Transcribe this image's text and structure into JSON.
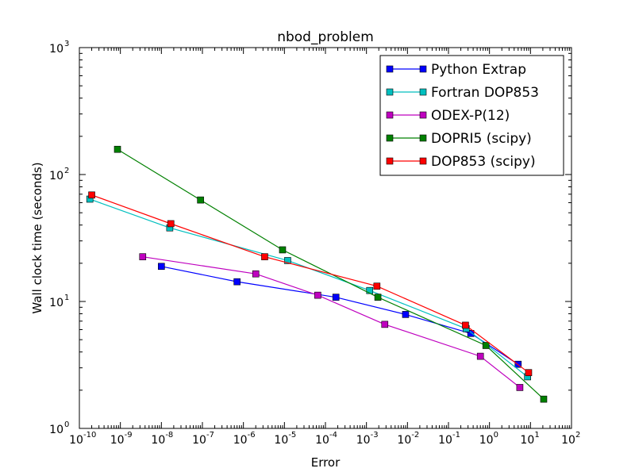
{
  "chart_data": {
    "type": "line",
    "title": "nbod_problem",
    "xlabel": "Error",
    "ylabel": "Wall clock time (seconds)",
    "xscale": "log",
    "yscale": "log",
    "xlim": [
      1e-10,
      100
    ],
    "ylim": [
      1,
      1000
    ],
    "xticks": [
      {
        "base": "10",
        "exp": "-10",
        "value": 1e-10
      },
      {
        "base": "10",
        "exp": "-9",
        "value": 1e-09
      },
      {
        "base": "10",
        "exp": "-8",
        "value": 1e-08
      },
      {
        "base": "10",
        "exp": "-7",
        "value": 1e-07
      },
      {
        "base": "10",
        "exp": "-6",
        "value": 1e-06
      },
      {
        "base": "10",
        "exp": "-5",
        "value": 1e-05
      },
      {
        "base": "10",
        "exp": "-4",
        "value": 0.0001
      },
      {
        "base": "10",
        "exp": "-3",
        "value": 0.001
      },
      {
        "base": "10",
        "exp": "-2",
        "value": 0.01
      },
      {
        "base": "10",
        "exp": "-1",
        "value": 0.1
      },
      {
        "base": "10",
        "exp": "0",
        "value": 1
      },
      {
        "base": "10",
        "exp": "1",
        "value": 10
      },
      {
        "base": "10",
        "exp": "2",
        "value": 100
      }
    ],
    "yticks": [
      {
        "base": "10",
        "exp": "0",
        "value": 1
      },
      {
        "base": "10",
        "exp": "1",
        "value": 10
      },
      {
        "base": "10",
        "exp": "2",
        "value": 100
      },
      {
        "base": "10",
        "exp": "3",
        "value": 1000
      }
    ],
    "grid": false,
    "legend_position": "top-right",
    "series": [
      {
        "name": "Python Extrap",
        "color": "#0000ff",
        "marker": "square",
        "points": [
          [
            1e-08,
            18.9
          ],
          [
            7e-07,
            14.3
          ],
          [
            0.00018,
            10.8
          ],
          [
            0.009,
            7.9
          ],
          [
            0.35,
            5.6
          ],
          [
            5,
            3.2
          ]
        ]
      },
      {
        "name": "Fortran DOP853",
        "color": "#00bfbf",
        "marker": "square",
        "points": [
          [
            1.8e-10,
            64
          ],
          [
            1.6e-08,
            38
          ],
          [
            1.2e-05,
            21
          ],
          [
            0.0012,
            12.2
          ],
          [
            0.27,
            6.1
          ],
          [
            8.5,
            2.55
          ]
        ]
      },
      {
        "name": "ODEX-P(12)",
        "color": "#bf00bf",
        "marker": "square",
        "points": [
          [
            3.5e-09,
            22.5
          ],
          [
            2e-06,
            16.5
          ],
          [
            6.5e-05,
            11.2
          ],
          [
            0.0028,
            6.6
          ],
          [
            0.6,
            3.7
          ],
          [
            5.5,
            2.1
          ]
        ]
      },
      {
        "name": "DOPRI5 (scipy)",
        "color": "#008000",
        "marker": "square",
        "points": [
          [
            8.5e-10,
            158
          ],
          [
            9e-08,
            63
          ],
          [
            9e-06,
            25.5
          ],
          [
            0.0019,
            10.8
          ],
          [
            0.82,
            4.5
          ],
          [
            21,
            1.7
          ]
        ]
      },
      {
        "name": "DOP853 (scipy)",
        "color": "#ff0000",
        "marker": "square",
        "points": [
          [
            2e-10,
            69
          ],
          [
            1.7e-08,
            41
          ],
          [
            3.3e-06,
            22.5
          ],
          [
            0.0018,
            13.2
          ],
          [
            0.26,
            6.5
          ],
          [
            9,
            2.75
          ]
        ]
      }
    ]
  }
}
